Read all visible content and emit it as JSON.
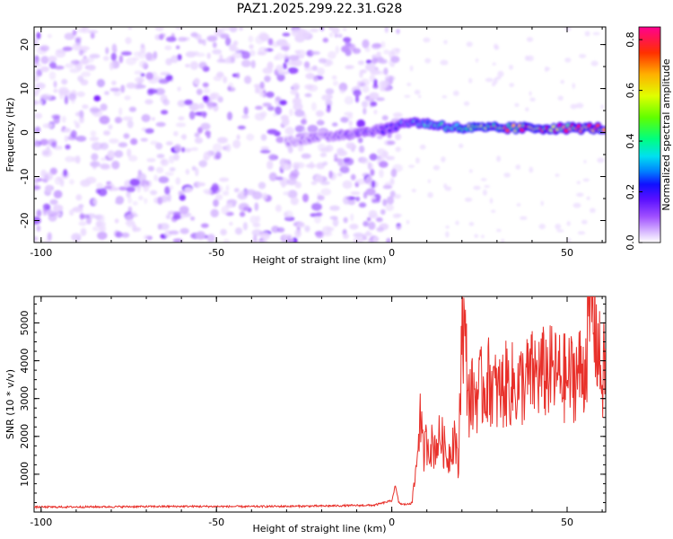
{
  "title": "PAZ1.2025.299.22.31.G28",
  "chart_data": [
    {
      "type": "heatmap",
      "title": "PAZ1.2025.299.22.31.G28",
      "xlabel": "Height of straight line (km)",
      "ylabel": "Frequency (Hz)",
      "xlim": [
        -102,
        61
      ],
      "ylim": [
        -25,
        24
      ],
      "xticks": [
        -100,
        -50,
        0,
        50
      ],
      "yticks": [
        -20,
        -10,
        0,
        10,
        20
      ],
      "colorbar": {
        "label": "Normalized spectral amplitude",
        "range": [
          0.0,
          0.85
        ],
        "ticks": [
          "0.0",
          "0.2",
          "0.4",
          "0.6",
          "0.8"
        ],
        "colors": [
          "#ffffff",
          "#e0c8ff",
          "#b070ff",
          "#7a1cff",
          "#2a00ff",
          "#0060ff",
          "#00d8ff",
          "#00ff90",
          "#50ff00",
          "#d8ff00",
          "#ffc000",
          "#ff4000",
          "#ff0080"
        ]
      },
      "ridge": {
        "description": "dominant signal line",
        "x": [
          -30,
          -20,
          -10,
          0,
          5,
          10,
          15,
          20,
          30,
          40,
          50,
          60
        ],
        "y": [
          -2,
          -1,
          0,
          1,
          2.5,
          2,
          1.5,
          1,
          1,
          1,
          1,
          1
        ],
        "peak_amplitude": [
          0.1,
          0.15,
          0.2,
          0.25,
          0.35,
          0.4,
          0.45,
          0.55,
          0.7,
          0.8,
          0.85,
          0.8
        ]
      }
    },
    {
      "type": "line",
      "xlabel": "Height of straight line (km)",
      "ylabel": "SNR (10 * v/v)",
      "xlim": [
        -102,
        61
      ],
      "ylim": [
        0,
        5700
      ],
      "xticks": [
        -100,
        -50,
        0,
        50
      ],
      "yticks": [
        1000,
        2000,
        3000,
        4000,
        5000
      ],
      "series": [
        {
          "name": "SNR",
          "color": "#e8302a",
          "x": [
            -102,
            -80,
            -60,
            -40,
            -20,
            -5,
            0,
            1,
            2,
            3,
            5,
            6,
            7,
            8,
            9,
            10,
            12,
            14,
            16,
            18,
            19,
            20,
            22,
            25,
            28,
            30,
            33,
            36,
            40,
            45,
            50,
            55,
            57,
            60,
            61
          ],
          "y": [
            130,
            140,
            150,
            145,
            160,
            180,
            300,
            700,
            250,
            200,
            210,
            400,
            1200,
            2600,
            1500,
            1900,
            1700,
            2000,
            1400,
            2100,
            1000,
            5500,
            3000,
            3200,
            3500,
            3100,
            3400,
            3300,
            3600,
            3700,
            3500,
            3800,
            5700,
            3400,
            4200
          ]
        }
      ]
    }
  ]
}
